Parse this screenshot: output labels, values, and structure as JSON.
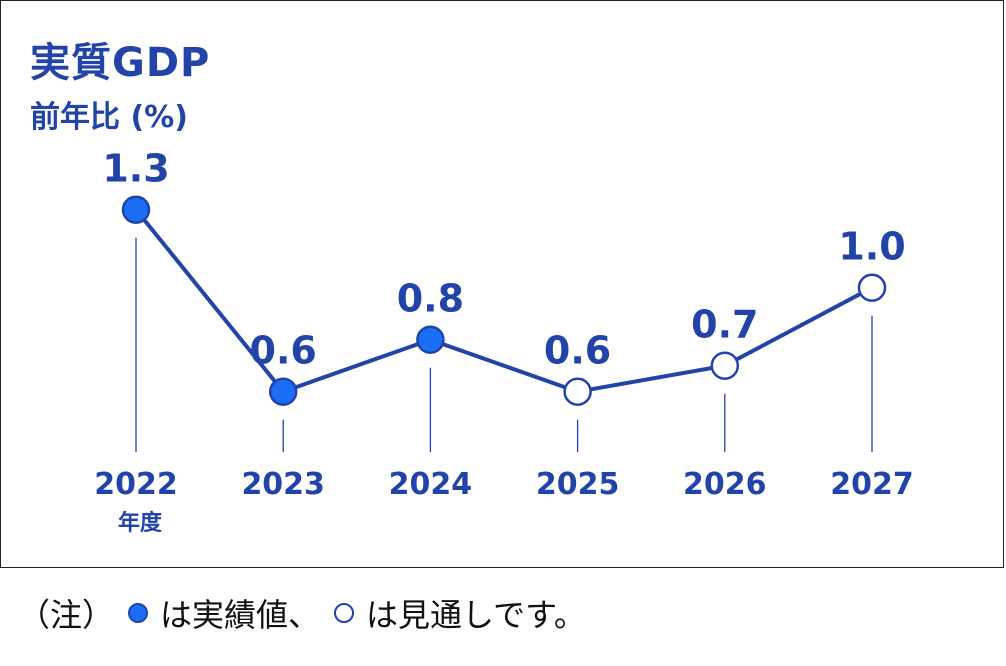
{
  "colors": {
    "primary": "#2244a8",
    "fill": "#1a6ef5",
    "text": "#111111"
  },
  "title": "実質GDP",
  "subtitle": "前年比 (%)",
  "x_unit": "年度",
  "chart_data": {
    "type": "line",
    "title": "実質GDP",
    "ylabel": "前年比 (%)",
    "xlabel": "年度",
    "categories": [
      "2022",
      "2023",
      "2024",
      "2025",
      "2026",
      "2027"
    ],
    "values": [
      1.3,
      0.6,
      0.8,
      0.6,
      0.7,
      1.0
    ],
    "value_labels": [
      "1.3",
      "0.6",
      "0.8",
      "0.6",
      "0.7",
      "1.0"
    ],
    "point_style": [
      "filled",
      "filled",
      "filled",
      "hollow",
      "hollow",
      "hollow"
    ],
    "legend_placement": "bottom-left",
    "grid": false
  },
  "note": {
    "prefix": "（注）",
    "actual_text": "は実績値、",
    "forecast_text": "は見通しです。"
  }
}
